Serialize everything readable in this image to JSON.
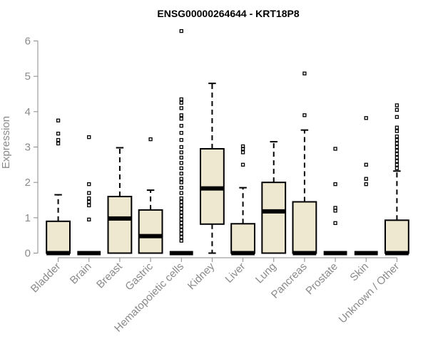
{
  "chart_data": {
    "type": "box",
    "title": "ENSG00000264644 - KRT18P8",
    "xlabel": "",
    "ylabel": "Expression",
    "ylim": [
      0,
      6.3
    ],
    "yticks": [
      0,
      1,
      2,
      3,
      4,
      5,
      6
    ],
    "grid": false,
    "box_fill": "#efe8d0",
    "categories": [
      "Bladder",
      "Brain",
      "Breast",
      "Gastric",
      "Hematopoietic cells",
      "Kidney",
      "Liver",
      "Lung",
      "Pancreas",
      "Prostate",
      "Skin",
      "Unknown / Other"
    ],
    "boxes": [
      {
        "category": "Bladder",
        "q1": 0,
        "median": 0,
        "q3": 0.9,
        "whisker_low": 0,
        "whisker_high": 1.65,
        "outliers": [
          3.1,
          3.2,
          3.38,
          3.75
        ]
      },
      {
        "category": "Brain",
        "q1": 0,
        "median": 0,
        "q3": 0,
        "whisker_low": 0,
        "whisker_high": 0,
        "outliers": [
          0.95,
          1.35,
          1.45,
          1.55,
          1.7,
          1.95,
          3.28
        ]
      },
      {
        "category": "Breast",
        "q1": 0,
        "median": 0.98,
        "q3": 1.6,
        "whisker_low": 0,
        "whisker_high": 2.98,
        "outliers": []
      },
      {
        "category": "Gastric",
        "q1": 0,
        "median": 0.48,
        "q3": 1.22,
        "whisker_low": 0,
        "whisker_high": 1.78,
        "outliers": [
          3.22
        ]
      },
      {
        "category": "Hematopoietic cells",
        "q1": 0,
        "median": 0,
        "q3": 0,
        "whisker_low": 0,
        "whisker_high": 0,
        "outliers": [
          0.35,
          0.45,
          0.55,
          0.65,
          0.75,
          0.85,
          0.95,
          1.05,
          1.15,
          1.25,
          1.35,
          1.45,
          1.55,
          1.7,
          1.85,
          2.0,
          2.1,
          2.25,
          2.4,
          2.55,
          2.7,
          2.85,
          3.0,
          3.2,
          3.4,
          3.6,
          3.8,
          3.9,
          4.1,
          4.25,
          4.35,
          6.28
        ]
      },
      {
        "category": "Kidney",
        "q1": 0.82,
        "median": 1.83,
        "q3": 2.95,
        "whisker_low": 0,
        "whisker_high": 4.8,
        "outliers": []
      },
      {
        "category": "Liver",
        "q1": 0,
        "median": 0,
        "q3": 0.83,
        "whisker_low": 0,
        "whisker_high": 1.85,
        "outliers": [
          2.5,
          2.85,
          2.95,
          3.02
        ]
      },
      {
        "category": "Lung",
        "q1": 0,
        "median": 1.18,
        "q3": 2.0,
        "whisker_low": 0,
        "whisker_high": 3.15,
        "outliers": []
      },
      {
        "category": "Pancreas",
        "q1": 0,
        "median": 0,
        "q3": 1.45,
        "whisker_low": 0,
        "whisker_high": 3.48,
        "outliers": [
          3.9,
          5.08
        ]
      },
      {
        "category": "Prostate",
        "q1": 0,
        "median": 0,
        "q3": 0,
        "whisker_low": 0,
        "whisker_high": 0,
        "outliers": [
          0.85,
          1.2,
          1.28,
          1.95,
          2.95
        ]
      },
      {
        "category": "Skin",
        "q1": 0,
        "median": 0,
        "q3": 0,
        "whisker_low": 0,
        "whisker_high": 0,
        "outliers": [
          1.95,
          2.1,
          2.5,
          3.82
        ]
      },
      {
        "category": "Unknown / Other",
        "q1": 0,
        "median": 0,
        "q3": 0.93,
        "whisker_low": 0,
        "whisker_high": 2.32,
        "outliers": [
          2.4,
          2.5,
          2.6,
          2.7,
          2.8,
          2.9,
          3.0,
          3.1,
          3.2,
          3.3,
          3.45,
          3.55,
          3.85,
          4.05,
          4.18
        ]
      }
    ]
  }
}
